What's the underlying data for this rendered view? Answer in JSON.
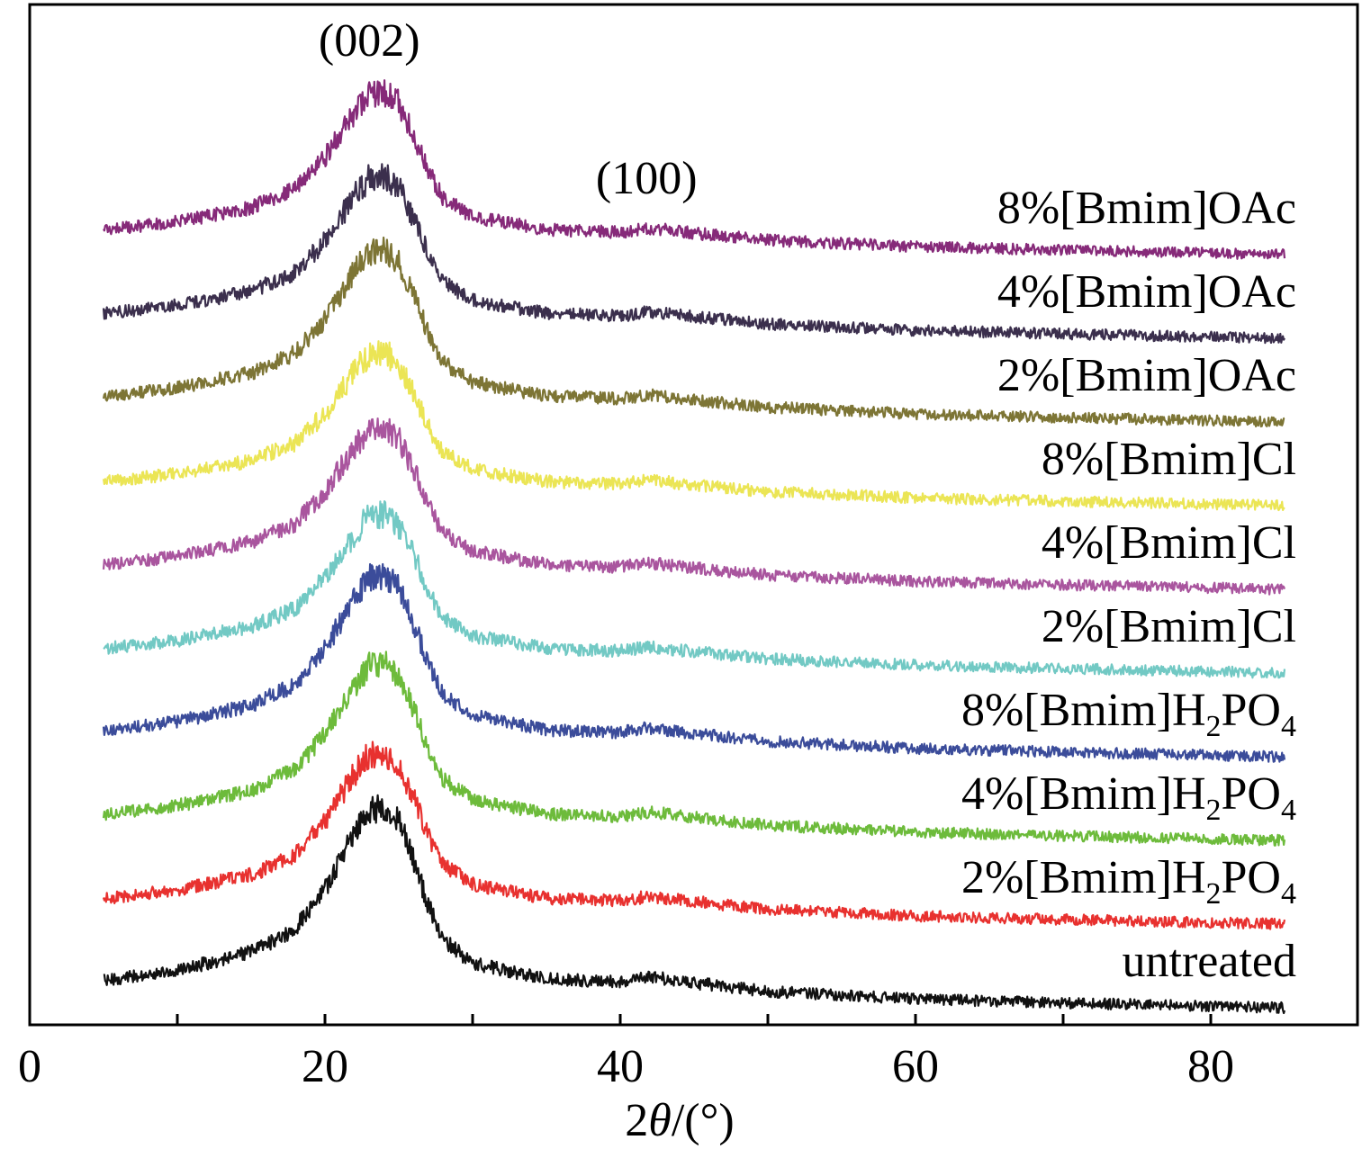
{
  "chart_data": {
    "type": "line",
    "title": "",
    "xlabel_parts": [
      "2",
      "θ",
      "/(°)"
    ],
    "ylabel": "",
    "xlim": [
      0,
      90
    ],
    "x_ticks": [
      0,
      20,
      40,
      60,
      80
    ],
    "x_minor_ticks": [
      10,
      30,
      50,
      70
    ],
    "y_tick_labels": false,
    "x_sampled": [
      5,
      10,
      15,
      18,
      20,
      22,
      23,
      24,
      25,
      26,
      27,
      28,
      30,
      35,
      40,
      42,
      45,
      50,
      60,
      70,
      85
    ],
    "normalized_profile": [
      0.06,
      0.12,
      0.22,
      0.35,
      0.56,
      0.86,
      0.98,
      1.0,
      0.92,
      0.72,
      0.48,
      0.3,
      0.18,
      0.1,
      0.09,
      0.12,
      0.09,
      0.05,
      0.02,
      0.01,
      0.0
    ],
    "annotations": [
      {
        "name": "peak-002-label",
        "text": "(002)",
        "x": 23
      },
      {
        "name": "peak-100-label",
        "text": "(100)",
        "x": 43
      }
    ],
    "series": [
      {
        "name": "untreated",
        "label_parts": [
          "untreated"
        ],
        "color": "#111111",
        "offset": 0,
        "peak_height": 1.0
      },
      {
        "name": "2%[Bmim]H2PO4",
        "label_parts": [
          "2%[Bmim]H",
          "2",
          "PO",
          "4"
        ],
        "color": "#e8312f",
        "offset": 1,
        "peak_height": 0.85
      },
      {
        "name": "4%[Bmim]H2PO4",
        "label_parts": [
          "4%[Bmim]H",
          "2",
          "PO",
          "4"
        ],
        "color": "#6dbb3b",
        "offset": 2,
        "peak_height": 0.88
      },
      {
        "name": "8%[Bmim]H2PO4",
        "label_parts": [
          "8%[Bmim]H",
          "2",
          "PO",
          "4"
        ],
        "color": "#3b4c9a",
        "offset": 3,
        "peak_height": 0.9
      },
      {
        "name": "2%[Bmim]Cl",
        "label_parts": [
          "2%[Bmim]Cl"
        ],
        "color": "#72c9c4",
        "offset": 4,
        "peak_height": 0.78
      },
      {
        "name": "4%[Bmim]Cl",
        "label_parts": [
          "4%[Bmim]Cl"
        ],
        "color": "#a9559e",
        "offset": 5,
        "peak_height": 0.8
      },
      {
        "name": "8%[Bmim]Cl",
        "label_parts": [
          "8%[Bmim]Cl"
        ],
        "color": "#ebe555",
        "offset": 6,
        "peak_height": 0.75
      },
      {
        "name": "2%[Bmim]OAc",
        "label_parts": [
          "2%[Bmim]OAc"
        ],
        "color": "#7d7535",
        "offset": 7,
        "peak_height": 0.85
      },
      {
        "name": "4%[Bmim]OAc",
        "label_parts": [
          "4%[Bmim]OAc"
        ],
        "color": "#3b2f4d",
        "offset": 8,
        "peak_height": 0.8
      },
      {
        "name": "8%[Bmim]OAc",
        "label_parts": [
          "8%[Bmim]OAc"
        ],
        "color": "#862a79",
        "offset": 9,
        "peak_height": 0.8
      }
    ]
  }
}
